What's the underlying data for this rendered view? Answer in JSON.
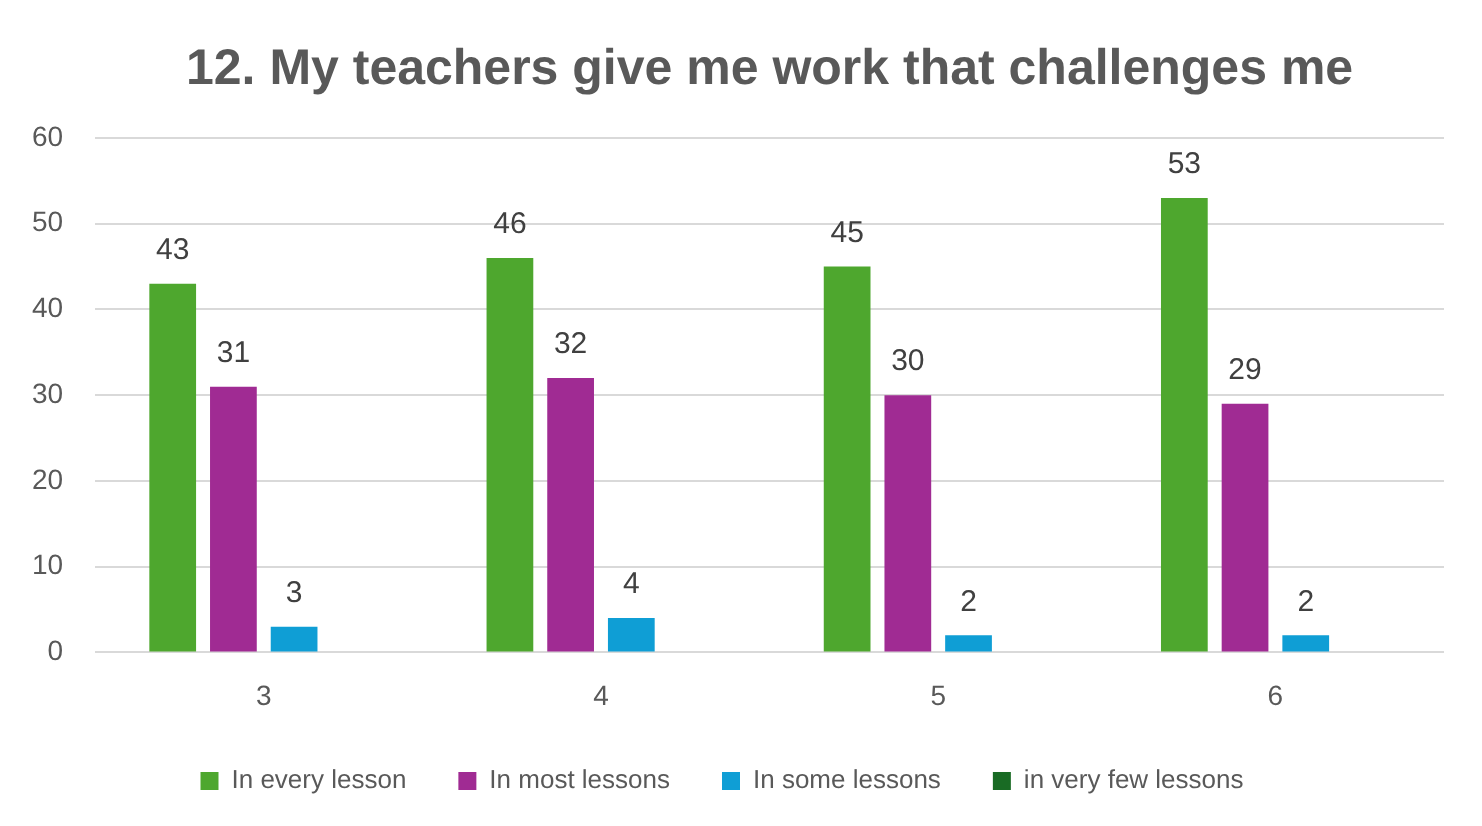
{
  "chart_data": {
    "type": "bar",
    "title": "12. My teachers give me work that challenges me",
    "categories": [
      "3",
      "4",
      "5",
      "6"
    ],
    "series": [
      {
        "name": "In every lesson",
        "color": "#4ea72e",
        "values": [
          43,
          46,
          45,
          53
        ]
      },
      {
        "name": "In most lessons",
        "color": "#a02b93",
        "values": [
          31,
          32,
          30,
          29
        ]
      },
      {
        "name": "In some lessons",
        "color": "#0f9ed5",
        "values": [
          3,
          4,
          2,
          2
        ]
      },
      {
        "name": "in very few lessons",
        "color": "#196b24",
        "values": [
          null,
          null,
          null,
          null
        ]
      }
    ],
    "ylim": [
      0,
      60
    ],
    "yticks": [
      0,
      10,
      20,
      30,
      40,
      50,
      60
    ],
    "grid": "y",
    "legend": "bottom",
    "data_labels": true
  }
}
